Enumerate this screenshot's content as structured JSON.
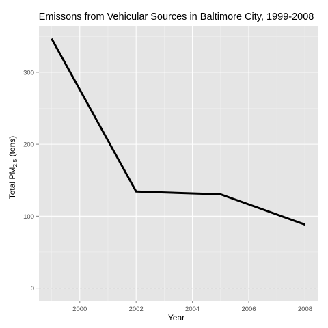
{
  "chart_data": {
    "type": "line",
    "title": "Emissons from Vehicular Sources in Baltimore City, 1999-2008",
    "xlabel": "Year",
    "ylabel": {
      "main": "Total PM",
      "subscript": "2.5",
      "unit": " (tons)"
    },
    "x": [
      1999,
      2002,
      2005,
      2008
    ],
    "series": [
      {
        "values": [
          346.8,
          134.3,
          130.4,
          88.3
        ],
        "color": "#000000"
      }
    ],
    "xlim": [
      1998.55,
      2008.45
    ],
    "ylim": [
      -17.5,
      364.5
    ],
    "xticks": [
      2000,
      2002,
      2004,
      2006,
      2008
    ],
    "yticks": [
      0,
      100,
      200,
      300
    ],
    "reference_line": {
      "y": 0,
      "style": "dashed",
      "color": "#999999"
    },
    "panel_background": "#e5e5e5",
    "grid": true,
    "legend": "none"
  }
}
